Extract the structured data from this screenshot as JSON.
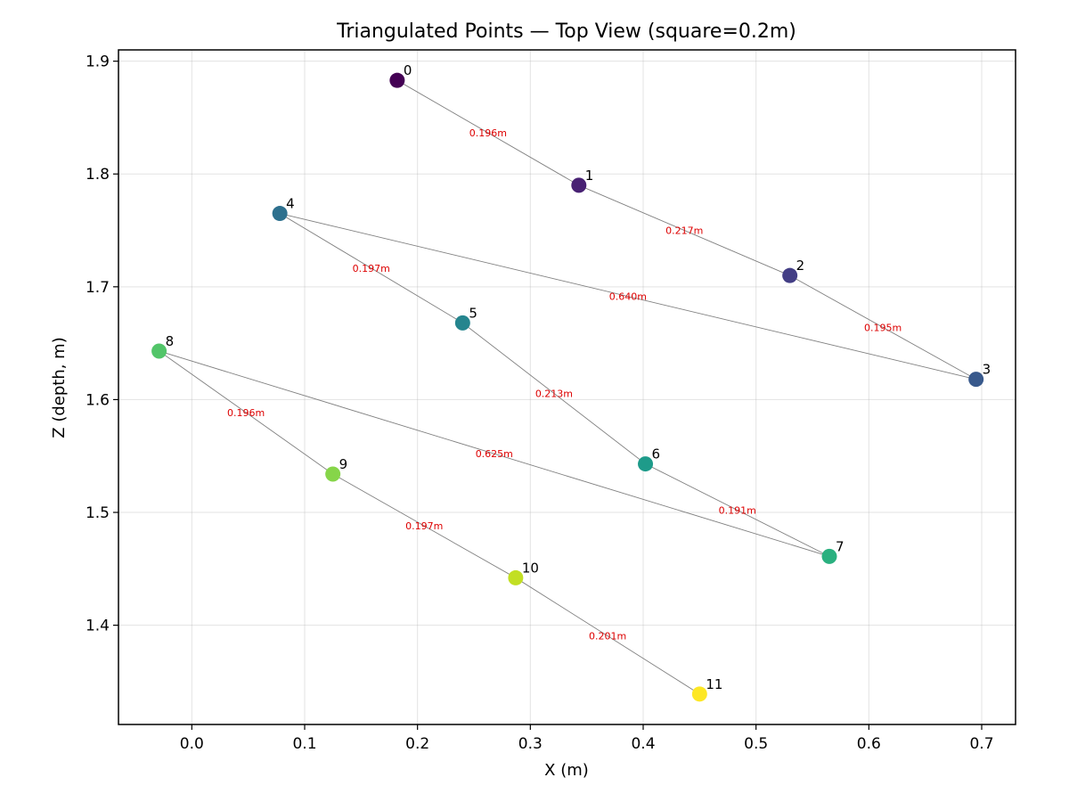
{
  "chart_data": {
    "type": "scatter",
    "title": "Triangulated Points — Top View (square=0.2m)",
    "xlabel": "X (m)",
    "ylabel": "Z (depth, m)",
    "xlim": [
      -0.065,
      0.73
    ],
    "ylim": [
      1.312,
      1.91
    ],
    "grid": true,
    "colormap": "viridis",
    "x_ticks": [
      "0.0",
      "0.1",
      "0.2",
      "0.3",
      "0.4",
      "0.5",
      "0.6",
      "0.7"
    ],
    "y_ticks": [
      "1.4",
      "1.5",
      "1.6",
      "1.7",
      "1.8",
      "1.9"
    ],
    "points": [
      {
        "label": "0",
        "x": 0.182,
        "z": 1.883,
        "color": "#440154"
      },
      {
        "label": "1",
        "x": 0.343,
        "z": 1.79,
        "color": "#482173"
      },
      {
        "label": "2",
        "x": 0.53,
        "z": 1.71,
        "color": "#433e85"
      },
      {
        "label": "3",
        "x": 0.695,
        "z": 1.618,
        "color": "#38598c"
      },
      {
        "label": "4",
        "x": 0.078,
        "z": 1.765,
        "color": "#2d708e"
      },
      {
        "label": "5",
        "x": 0.24,
        "z": 1.668,
        "color": "#25858e"
      },
      {
        "label": "6",
        "x": 0.402,
        "z": 1.543,
        "color": "#1e9b8a"
      },
      {
        "label": "7",
        "x": 0.565,
        "z": 1.461,
        "color": "#2ab07f"
      },
      {
        "label": "8",
        "x": -0.029,
        "z": 1.643,
        "color": "#52c569"
      },
      {
        "label": "9",
        "x": 0.125,
        "z": 1.534,
        "color": "#86d549"
      },
      {
        "label": "10",
        "x": 0.287,
        "z": 1.442,
        "color": "#c2df23"
      },
      {
        "label": "11",
        "x": 0.45,
        "z": 1.339,
        "color": "#fde725"
      }
    ],
    "segments": [
      {
        "from": 0,
        "to": 1,
        "label": "0.196m"
      },
      {
        "from": 1,
        "to": 2,
        "label": "0.217m"
      },
      {
        "from": 2,
        "to": 3,
        "label": "0.195m"
      },
      {
        "from": 3,
        "to": 4,
        "label": "0.640m"
      },
      {
        "from": 4,
        "to": 5,
        "label": "0.197m"
      },
      {
        "from": 5,
        "to": 6,
        "label": "0.213m"
      },
      {
        "from": 6,
        "to": 7,
        "label": "0.191m"
      },
      {
        "from": 7,
        "to": 8,
        "label": "0.625m"
      },
      {
        "from": 8,
        "to": 9,
        "label": "0.196m"
      },
      {
        "from": 9,
        "to": 10,
        "label": "0.197m"
      },
      {
        "from": 10,
        "to": 11,
        "label": "0.201m"
      }
    ],
    "line_color": "#808080",
    "segment_label_color": "#dd0000"
  }
}
